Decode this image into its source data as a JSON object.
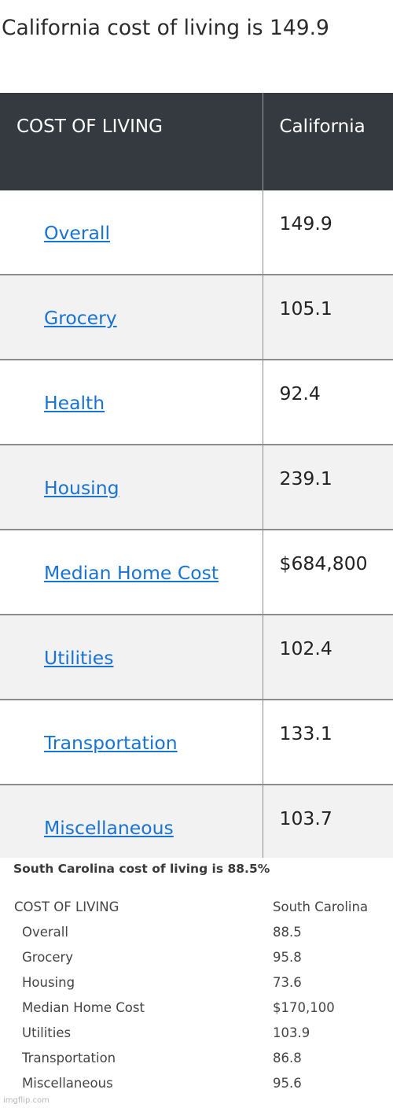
{
  "california": {
    "title": "California cost of living is 149.9",
    "columns": [
      "COST OF LIVING",
      "California"
    ],
    "rows": [
      {
        "label": "Overall",
        "value": "149.9"
      },
      {
        "label": "Grocery",
        "value": "105.1"
      },
      {
        "label": "Health",
        "value": "92.4"
      },
      {
        "label": "Housing",
        "value": "239.1"
      },
      {
        "label": "Median Home Cost",
        "value": "$684,800"
      },
      {
        "label": "Utilities",
        "value": "102.4"
      },
      {
        "label": "Transportation",
        "value": "133.1"
      },
      {
        "label": "Miscellaneous",
        "value": "103.7"
      }
    ],
    "colors": {
      "header_bg": "#353a40",
      "link": "#1a73d0",
      "stripe": "#f2f2f2"
    }
  },
  "south_carolina": {
    "title": "South Carolina cost of living is 88.5%",
    "columns": [
      "COST OF LIVING",
      "South Carolina"
    ],
    "rows": [
      {
        "label": "Overall",
        "value": "88.5"
      },
      {
        "label": "Grocery",
        "value": "95.8"
      },
      {
        "label": "Housing",
        "value": "73.6"
      },
      {
        "label": "Median Home Cost",
        "value": "$170,100"
      },
      {
        "label": "Utilities",
        "value": "103.9"
      },
      {
        "label": "Transportation",
        "value": "86.8"
      },
      {
        "label": "Miscellaneous",
        "value": "95.6"
      }
    ]
  },
  "watermark": "imgflip.com"
}
